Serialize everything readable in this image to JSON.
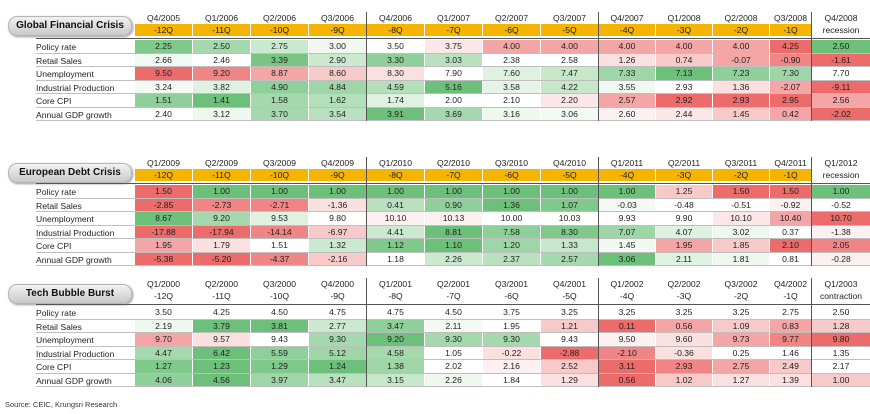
{
  "source": "Source: CEIC, Krungsri Research",
  "crises": [
    {
      "title": "Global Financial Crisis",
      "quarter_style": "highlight",
      "dates": [
        "Q4/2005",
        "Q1/2006",
        "Q2/2006",
        "Q3/2006",
        "Q4/2006",
        "Q1/2007",
        "Q2/2007",
        "Q3/2007",
        "Q4/2007",
        "Q1/2008",
        "Q2/2008",
        "Q3/2008",
        "Q4/2008"
      ],
      "offsets": [
        "-12Q",
        "-11Q",
        "-10Q",
        "-9Q",
        "-8Q",
        "-7Q",
        "-6Q",
        "-5Q",
        "-4Q",
        "-3Q",
        "-2Q",
        "-1Q",
        "recession"
      ],
      "rows": [
        {
          "label": "Policy rate",
          "values": [
            "2.25",
            "2.50",
            "2.75",
            "3.00",
            "3.50",
            "3.75",
            "4.00",
            "4.00",
            "4.00",
            "4.00",
            "4.00",
            "4.25",
            "2.50"
          ],
          "colors": [
            "#7fc98a",
            "#a5d9ad",
            "#cbe9cf",
            "#f0f8f1",
            "#ffffff",
            "#fbe7e7",
            "#f4a6a6",
            "#f4a6a6",
            "#f4a6a6",
            "#f4a6a6",
            "#f4a6a6",
            "#ec6b6b",
            "#6cc07a"
          ]
        },
        {
          "label": "Retail Sales",
          "values": [
            "2.66",
            "2.46",
            "3.39",
            "2.90",
            "3.30",
            "3.03",
            "2.38",
            "2.58",
            "1.26",
            "0.74",
            "-0.07",
            "-0.90",
            "-1.61"
          ],
          "colors": [
            "#f1f9f2",
            "#ffffff",
            "#79c684",
            "#cbe9cf",
            "#8fcf99",
            "#b9e1bf",
            "#ffffff",
            "#ffffff",
            "#fbe0e0",
            "#f8c9c9",
            "#f4a6a6",
            "#ef8585",
            "#ec6b6b"
          ]
        },
        {
          "label": "Unemployment",
          "values": [
            "9.50",
            "9.20",
            "8.87",
            "8.60",
            "8.30",
            "7.90",
            "7.60",
            "7.47",
            "7.33",
            "7.13",
            "7.23",
            "7.30",
            "7.70"
          ],
          "colors": [
            "#ec6b6b",
            "#ef8585",
            "#f4a6a6",
            "#f8c9c9",
            "#fbe0e0",
            "#ffffff",
            "#dff1e1",
            "#c7e7cb",
            "#9fd6a7",
            "#6cc07a",
            "#8fcf99",
            "#9fd6a7",
            "#ffffff"
          ]
        },
        {
          "label": "Industrial Production",
          "values": [
            "3.24",
            "3.82",
            "4.90",
            "4.84",
            "4.59",
            "5.16",
            "3.58",
            "4.22",
            "3.55",
            "2.93",
            "1.36",
            "-2.07",
            "-9.11"
          ],
          "colors": [
            "#f3faf4",
            "#dff1e1",
            "#8fcf99",
            "#9fd6a7",
            "#b3dfb9",
            "#6cc07a",
            "#e6f4e8",
            "#c7e7cb",
            "#f0f8f1",
            "#ffffff",
            "#fbe0e0",
            "#f4a6a6",
            "#ec6b6b"
          ]
        },
        {
          "label": "Core CPI",
          "values": [
            "1.51",
            "1.41",
            "1.58",
            "1.62",
            "1.74",
            "2.00",
            "2.10",
            "2.20",
            "2.57",
            "2.92",
            "2.93",
            "2.95",
            "2.56"
          ],
          "colors": [
            "#8fcf99",
            "#6cc07a",
            "#a5d9ad",
            "#b3dfb9",
            "#dff1e1",
            "#ffffff",
            "#ffffff",
            "#fbe7e7",
            "#f4a6a6",
            "#ec6b6b",
            "#ec6b6b",
            "#ec6b6b",
            "#f4a6a6"
          ]
        },
        {
          "label": "Annual GDP growth",
          "values": [
            "2.40",
            "3.12",
            "3.70",
            "3.54",
            "3.91",
            "3.69",
            "3.16",
            "3.06",
            "2.60",
            "2.44",
            "1.45",
            "0.42",
            "-2.02"
          ],
          "colors": [
            "#ffffff",
            "#eef8ef",
            "#a5d9ad",
            "#b9e1bf",
            "#6cc07a",
            "#a5d9ad",
            "#eef8ef",
            "#f3faf4",
            "#fdf0f0",
            "#fbe7e7",
            "#f8c9c9",
            "#f4a6a6",
            "#ec6b6b"
          ]
        }
      ]
    },
    {
      "title": "European Debt Crisis",
      "quarter_style": "highlight",
      "dates": [
        "Q1/2009",
        "Q2/2009",
        "Q3/2009",
        "Q4/2009",
        "Q1/2010",
        "Q2/2010",
        "Q3/2010",
        "Q4/2010",
        "Q1/2011",
        "Q2/2011",
        "Q3/2011",
        "Q4/2011",
        "Q1/2012"
      ],
      "offsets": [
        "-12Q",
        "-11Q",
        "-10Q",
        "-9Q",
        "-8Q",
        "-7Q",
        "-6Q",
        "-5Q",
        "-4Q",
        "-3Q",
        "-2Q",
        "-1Q",
        "recession"
      ],
      "rows": [
        {
          "label": "Policy rate",
          "values": [
            "1.50",
            "1.00",
            "1.00",
            "1.00",
            "1.00",
            "1.00",
            "1.00",
            "1.00",
            "1.00",
            "1.25",
            "1.50",
            "1.50",
            "1.00"
          ],
          "colors": [
            "#ec6b6b",
            "#6cc07a",
            "#6cc07a",
            "#6cc07a",
            "#6cc07a",
            "#6cc07a",
            "#6cc07a",
            "#6cc07a",
            "#6cc07a",
            "#f8c9c9",
            "#ec6b6b",
            "#ec6b6b",
            "#6cc07a"
          ]
        },
        {
          "label": "Retail Sales",
          "values": [
            "-2.85",
            "-2.73",
            "-2.71",
            "-1.36",
            "0.41",
            "0.90",
            "1.36",
            "1.07",
            "-0.03",
            "-0.48",
            "-0.51",
            "-0.92",
            "-0.52"
          ],
          "colors": [
            "#ec6b6b",
            "#ef8585",
            "#ef8585",
            "#fbe0e0",
            "#b9e1bf",
            "#8fcf99",
            "#6cc07a",
            "#7fc98a",
            "#f3faf4",
            "#ffffff",
            "#ffffff",
            "#fdf0f0",
            "#ffffff"
          ]
        },
        {
          "label": "Unemployment",
          "values": [
            "8.67",
            "9.20",
            "9.53",
            "9.80",
            "10.10",
            "10.13",
            "10.00",
            "10.03",
            "9.93",
            "9.90",
            "10.10",
            "10.40",
            "10.70"
          ],
          "colors": [
            "#6cc07a",
            "#a5d9ad",
            "#dff1e1",
            "#ffffff",
            "#fdf0f0",
            "#fdf0f0",
            "#ffffff",
            "#ffffff",
            "#ffffff",
            "#ffffff",
            "#fbe7e7",
            "#f4a6a6",
            "#ec6b6b"
          ]
        },
        {
          "label": "Industrial Production",
          "values": [
            "-17.88",
            "-17.94",
            "-14.14",
            "-6.97",
            "4.41",
            "8.81",
            "7.58",
            "8.30",
            "7.07",
            "4.07",
            "3.02",
            "0.37",
            "-1.38"
          ],
          "colors": [
            "#ec6b6b",
            "#ec6b6b",
            "#ef8585",
            "#f8c9c9",
            "#cbe9cf",
            "#6cc07a",
            "#8fcf99",
            "#7fc98a",
            "#9fd6a7",
            "#dff1e1",
            "#eef8ef",
            "#ffffff",
            "#fdf0f0"
          ]
        },
        {
          "label": "Core CPI",
          "values": [
            "1.95",
            "1.79",
            "1.51",
            "1.32",
            "1.12",
            "1.10",
            "1.20",
            "1.33",
            "1.45",
            "1.95",
            "1.85",
            "2.10",
            "2.05"
          ],
          "colors": [
            "#f4a6a6",
            "#fbe0e0",
            "#ffffff",
            "#cbe9cf",
            "#7fc98a",
            "#6cc07a",
            "#9fd6a7",
            "#c7e7cb",
            "#f0f8f1",
            "#f4a6a6",
            "#f8c9c9",
            "#ec6b6b",
            "#ef8585"
          ]
        },
        {
          "label": "Annual GDP growth",
          "values": [
            "-5.38",
            "-5.20",
            "-4.37",
            "-2.16",
            "1.18",
            "2.26",
            "2.37",
            "2.57",
            "3.06",
            "2.11",
            "1.81",
            "0.81",
            "-0.28"
          ],
          "colors": [
            "#ec6b6b",
            "#ec6b6b",
            "#ef8585",
            "#f8c9c9",
            "#ffffff",
            "#cbe9cf",
            "#b9e1bf",
            "#a5d9ad",
            "#6cc07a",
            "#dff1e1",
            "#eef8ef",
            "#ffffff",
            "#fdf0f0"
          ]
        }
      ]
    },
    {
      "title": "Tech Bubble Burst",
      "quarter_style": "plain",
      "dates": [
        "Q1/2000",
        "Q2/2000",
        "Q3/2000",
        "Q4/2000",
        "Q1/2001",
        "Q2/2001",
        "Q3/2001",
        "Q4/2001",
        "Q1/2002",
        "Q2/2002",
        "Q3/2002",
        "Q4/2002",
        "Q1/2003"
      ],
      "offsets": [
        "-12Q",
        "-11Q",
        "-10Q",
        "-9Q",
        "-8Q",
        "-7Q",
        "-6Q",
        "-5Q",
        "-4Q",
        "-3Q",
        "-2Q",
        "-1Q",
        "contraction"
      ],
      "rows": [
        {
          "label": "Policy rate",
          "values": [
            "3.50",
            "4.25",
            "4.50",
            "4.75",
            "4.75",
            "4.50",
            "3.75",
            "3.25",
            "3.25",
            "3.25",
            "3.25",
            "2.75",
            "2.50"
          ],
          "colors": [
            "#ffffff",
            "#ffffff",
            "#ffffff",
            "#ffffff",
            "#ffffff",
            "#ffffff",
            "#ffffff",
            "#ffffff",
            "#ffffff",
            "#ffffff",
            "#ffffff",
            "#ffffff",
            "#ffffff"
          ]
        },
        {
          "label": "Retail Sales",
          "values": [
            "2.19",
            "3.79",
            "3.81",
            "2.77",
            "3.47",
            "2.11",
            "1.95",
            "1.21",
            "0.11",
            "0.56",
            "1.09",
            "0.83",
            "1.28"
          ],
          "colors": [
            "#eef8ef",
            "#6cc07a",
            "#6cc07a",
            "#cbe9cf",
            "#8fcf99",
            "#f3faf4",
            "#ffffff",
            "#f8c9c9",
            "#ec6b6b",
            "#f4a6a6",
            "#f8c9c9",
            "#f4a6a6",
            "#f8c9c9"
          ]
        },
        {
          "label": "Unemployment",
          "values": [
            "9.70",
            "9.57",
            "9.43",
            "9.30",
            "9.20",
            "9.30",
            "9.30",
            "9.43",
            "9.50",
            "9.60",
            "9.73",
            "9.77",
            "9.80"
          ],
          "colors": [
            "#f4a6a6",
            "#fbe0e0",
            "#ffffff",
            "#a5d9ad",
            "#6cc07a",
            "#a5d9ad",
            "#a5d9ad",
            "#ffffff",
            "#fdf0f0",
            "#fbe0e0",
            "#f4a6a6",
            "#ef8585",
            "#ec6b6b"
          ]
        },
        {
          "label": "Industrial Production",
          "values": [
            "4.47",
            "6.42",
            "5.59",
            "5.12",
            "4.58",
            "1.05",
            "-0.22",
            "-2.88",
            "-2.10",
            "-0.36",
            "0.25",
            "1.46",
            "1.35"
          ],
          "colors": [
            "#a5d9ad",
            "#6cc07a",
            "#8fcf99",
            "#9fd6a7",
            "#a5d9ad",
            "#ffffff",
            "#fbe0e0",
            "#ec6b6b",
            "#ef8585",
            "#fbe0e0",
            "#ffffff",
            "#ffffff",
            "#ffffff"
          ]
        },
        {
          "label": "Core CPI",
          "values": [
            "1.27",
            "1.23",
            "1.29",
            "1.24",
            "1.38",
            "2.02",
            "2.16",
            "2.52",
            "3.11",
            "2.93",
            "2.75",
            "2.49",
            "2.17"
          ],
          "colors": [
            "#7fc98a",
            "#6cc07a",
            "#7fc98a",
            "#6cc07a",
            "#9fd6a7",
            "#ffffff",
            "#fdf0f0",
            "#f8c9c9",
            "#ec6b6b",
            "#ef8585",
            "#f4a6a6",
            "#f8c9c9",
            "#ffffff"
          ]
        },
        {
          "label": "Annual GDP growth",
          "values": [
            "4.06",
            "4.56",
            "3.97",
            "3.47",
            "3.15",
            "2.26",
            "1.84",
            "1.29",
            "0.56",
            "1.02",
            "1.27",
            "1.39",
            "1.00"
          ],
          "colors": [
            "#8fcf99",
            "#6cc07a",
            "#9fd6a7",
            "#b9e1bf",
            "#c7e7cb",
            "#eef8ef",
            "#ffffff",
            "#fbe0e0",
            "#ec6b6b",
            "#f8c9c9",
            "#fbe0e0",
            "#fbe0e0",
            "#f8c9c9"
          ]
        }
      ]
    }
  ]
}
